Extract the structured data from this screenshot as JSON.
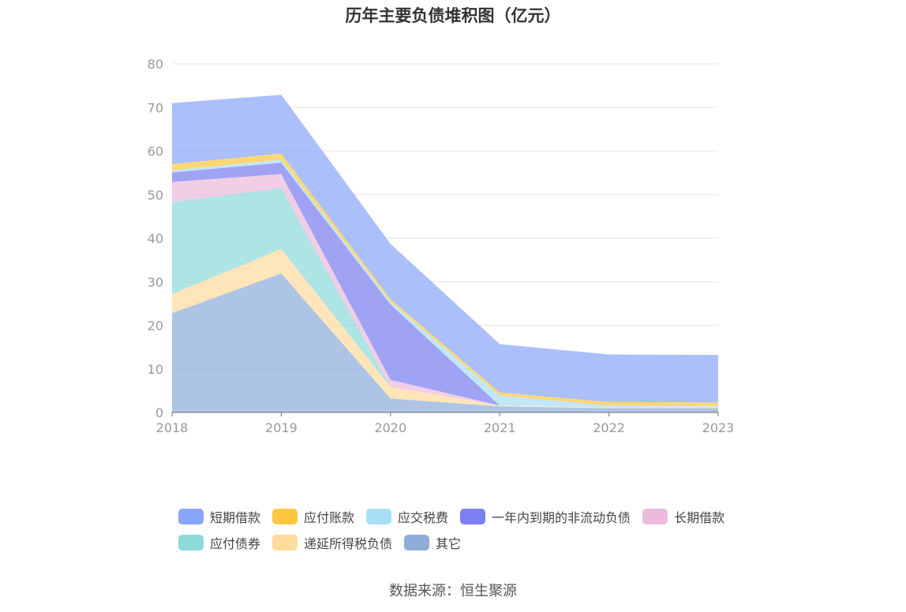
{
  "page_title": "历年主要负债堆积图（亿元）",
  "source_text": "数据来源：恒生聚源",
  "chart_data": {
    "type": "area",
    "stacked": true,
    "title": "历年主要负债堆积图（亿元）",
    "x": [
      "2018",
      "2019",
      "2020",
      "2021",
      "2022",
      "2023"
    ],
    "ylim": [
      0,
      80
    ],
    "yticks": [
      "0",
      "10",
      "20",
      "30",
      "40",
      "50",
      "60",
      "70",
      "80"
    ],
    "grid": true,
    "legend_position": "bottom",
    "series": [
      {
        "name": "其它",
        "color": "#8FADD9",
        "values": [
          22.8,
          31.9,
          3.2,
          1.4,
          1.0,
          1.0
        ]
      },
      {
        "name": "递延所得税负债",
        "color": "#FFDB9E",
        "values": [
          4.4,
          5.6,
          2.7,
          0.2,
          0.2,
          0.2
        ]
      },
      {
        "name": "应付债券",
        "color": "#8ED9D9",
        "values": [
          21.1,
          14.0,
          0.0,
          0.0,
          0.0,
          0.0
        ]
      },
      {
        "name": "长期借款",
        "color": "#ECBADD",
        "values": [
          4.6,
          3.2,
          1.6,
          0.0,
          0.0,
          0.0
        ]
      },
      {
        "name": "一年内到期的非流动负债",
        "color": "#7B7FF0",
        "values": [
          2.2,
          2.6,
          17.3,
          0.0,
          0.0,
          0.0
        ]
      },
      {
        "name": "应交税费",
        "color": "#A9DEF7",
        "values": [
          0.5,
          0.7,
          0.6,
          2.3,
          0.4,
          0.3
        ]
      },
      {
        "name": "应付账款",
        "color": "#FFC740",
        "values": [
          1.4,
          1.4,
          0.6,
          0.7,
          0.8,
          0.8
        ]
      },
      {
        "name": "短期借款",
        "color": "#8AA6FA",
        "values": [
          14.0,
          13.5,
          12.7,
          11.1,
          10.9,
          10.9
        ]
      }
    ]
  },
  "legend": {
    "rows": [
      [
        {
          "label": "短期借款",
          "color": "#8AA6FA"
        },
        {
          "label": "应付账款",
          "color": "#FFC740"
        },
        {
          "label": "应交税费",
          "color": "#A9DEF7"
        },
        {
          "label": "一年内到期的非流动负债",
          "color": "#7B7FF0"
        },
        {
          "label": "长期借款",
          "color": "#ECBADD"
        }
      ],
      [
        {
          "label": "应付债券",
          "color": "#8ED9D9"
        },
        {
          "label": "递延所得税负债",
          "color": "#FFDB9E"
        },
        {
          "label": "其它",
          "color": "#8FADD9"
        }
      ]
    ]
  }
}
